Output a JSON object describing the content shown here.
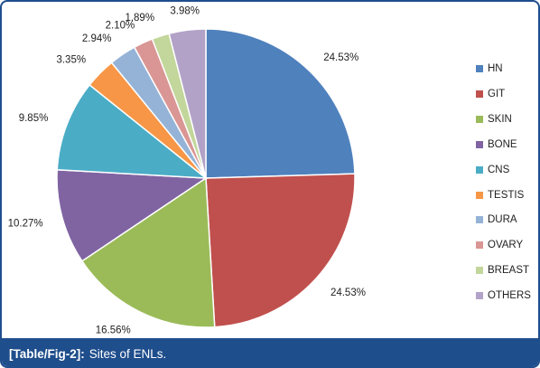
{
  "chart_data": {
    "type": "pie",
    "slices": [
      {
        "label": "HN",
        "value": 24.53,
        "display": "24.53%",
        "color": "#4f81bd"
      },
      {
        "label": "GIT",
        "value": 24.53,
        "display": "24.53%",
        "color": "#c0504d"
      },
      {
        "label": "SKIN",
        "value": 16.56,
        "display": "16.56%",
        "color": "#9bbb59"
      },
      {
        "label": "BONE",
        "value": 10.27,
        "display": "10.27%",
        "color": "#8064a2"
      },
      {
        "label": "CNS",
        "value": 9.85,
        "display": "9.85%",
        "color": "#4bacc6"
      },
      {
        "label": "TESTIS",
        "value": 3.35,
        "display": "3.35%",
        "color": "#f79646"
      },
      {
        "label": "DURA",
        "value": 2.94,
        "display": "2.94%",
        "color": "#95b3d7"
      },
      {
        "label": "OVARY",
        "value": 2.1,
        "display": "2.10%",
        "color": "#d99694"
      },
      {
        "label": "BREAST",
        "value": 1.89,
        "display": "1.89%",
        "color": "#c3d69b"
      },
      {
        "label": "OTHERS",
        "value": 3.98,
        "display": "3.98%",
        "color": "#b2a2c7"
      }
    ],
    "legend_position": "right"
  },
  "caption": {
    "ref": "[Table/Fig-2]:",
    "text": "Sites of ENLs."
  }
}
